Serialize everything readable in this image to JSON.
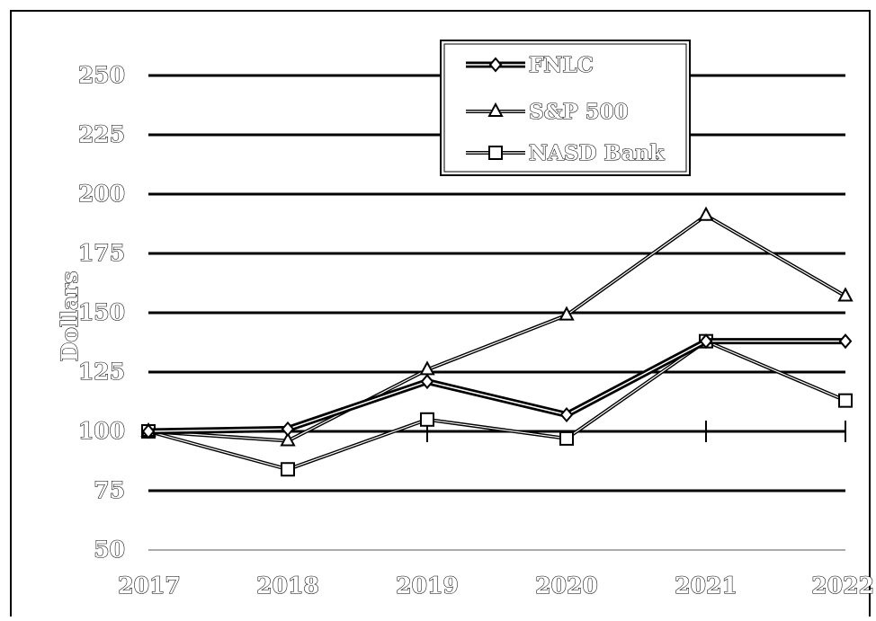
{
  "chart_data": {
    "type": "line",
    "title": "",
    "xlabel": "",
    "ylabel": "Dollars",
    "categories": [
      "2017",
      "2018",
      "2019",
      "2020",
      "2021",
      "2022"
    ],
    "ylim": [
      50,
      250
    ],
    "yticks": [
      "50",
      "75",
      "100",
      "125",
      "150",
      "175",
      "200",
      "225",
      "250"
    ],
    "grid": true,
    "legend_position": "top-center",
    "series": [
      {
        "name": "FNLC",
        "marker": "diamond",
        "values": [
          100,
          101,
          121,
          107,
          138,
          138
        ]
      },
      {
        "name": "S&P 500",
        "marker": "triangle",
        "values": [
          100,
          96,
          126,
          149,
          191,
          157
        ]
      },
      {
        "name": "NASD Bank",
        "marker": "square",
        "values": [
          100,
          84,
          105,
          97,
          138,
          113
        ]
      }
    ]
  }
}
